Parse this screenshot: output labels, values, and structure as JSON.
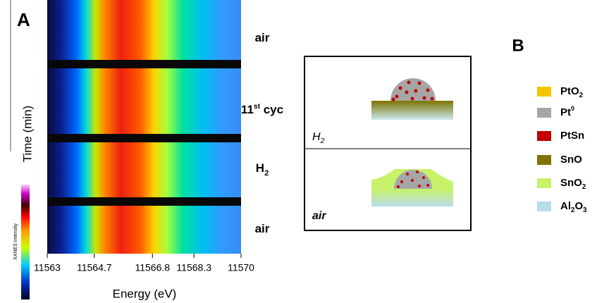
{
  "chart_data": {
    "type": "heatmap",
    "panel_label": "A",
    "xlabel": "Energy (eV)",
    "ylabel": "Time (min)",
    "xlim": [
      11563,
      11570
    ],
    "xticks": [
      11563,
      11564.7,
      11566.8,
      11568.3,
      11570
    ],
    "colorbar_label": "XANES Intensity",
    "segments": [
      {
        "parts": [
          "air"
        ]
      },
      {
        "parts": [
          "11",
          "st",
          " cyc"
        ]
      },
      {
        "parts": [
          "H",
          "2"
        ]
      },
      {
        "parts": [
          "air"
        ]
      }
    ]
  },
  "panel_b": {
    "panel_label": "B",
    "states": [
      {
        "parts": [
          "H",
          "2"
        ]
      },
      {
        "parts": [
          "air"
        ]
      }
    ],
    "legend": [
      {
        "parts": [
          "PtO",
          "2"
        ],
        "color": "#f5c400"
      },
      {
        "parts": [
          "Pt",
          "0"
        ],
        "color": "#a6a6a6"
      },
      {
        "parts": [
          "PtSn"
        ],
        "color": "#c00000"
      },
      {
        "parts": [
          "SnO"
        ],
        "color": "#7f7300"
      },
      {
        "parts": [
          "SnO",
          "2"
        ],
        "color": "#c7f26a"
      },
      {
        "parts": [
          "Al",
          "2",
          "O",
          "3"
        ],
        "color": "#b7dde8"
      }
    ]
  }
}
